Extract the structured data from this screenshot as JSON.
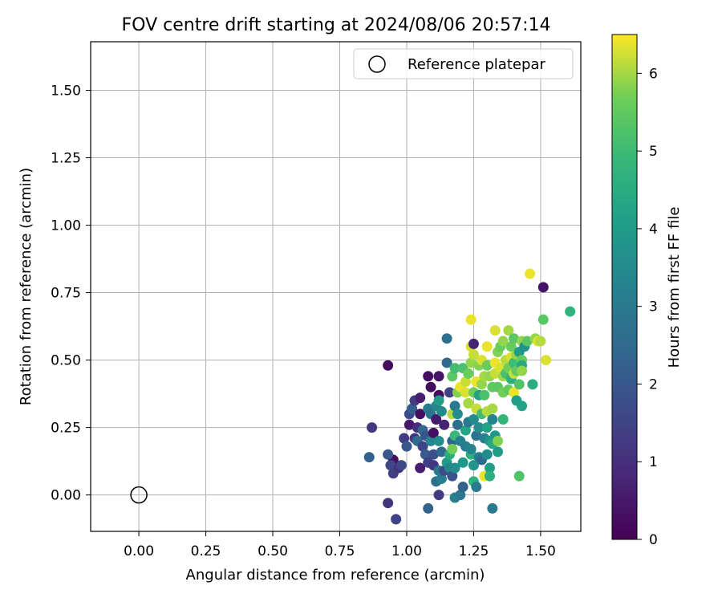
{
  "chart_data": {
    "type": "scatter",
    "title": "FOV centre drift starting at 2024/08/06 20:57:14",
    "xlabel": "Angular distance from reference (arcmin)",
    "ylabel": "Rotation from reference (arcmin)",
    "xlim": [
      -0.18,
      1.65
    ],
    "ylim": [
      -0.135,
      1.68
    ],
    "xticks": [
      "0.00",
      "0.25",
      "0.50",
      "0.75",
      "1.00",
      "1.25",
      "1.50"
    ],
    "yticks": [
      "0.00",
      "0.25",
      "0.50",
      "0.75",
      "1.00",
      "1.25",
      "1.50"
    ],
    "grid": true,
    "legend": {
      "label": "Reference platepar",
      "position": "upper right"
    },
    "colorbar": {
      "label": "Hours from first FF file",
      "colormap": "viridis",
      "range": [
        0,
        6.5
      ],
      "ticks": [
        "0",
        "1",
        "2",
        "3",
        "4",
        "5",
        "6"
      ]
    },
    "reference_point": {
      "x": 0.0,
      "y": 0.0
    },
    "points": [
      {
        "x": 0.93,
        "y": 0.48,
        "h": 0.2
      },
      {
        "x": 0.87,
        "y": 0.25,
        "h": 1.2
      },
      {
        "x": 0.93,
        "y": -0.03,
        "h": 1.1
      },
      {
        "x": 0.96,
        "y": -0.09,
        "h": 1.5
      },
      {
        "x": 0.86,
        "y": 0.14,
        "h": 2.2
      },
      {
        "x": 0.95,
        "y": 0.13,
        "h": 0.3
      },
      {
        "x": 0.93,
        "y": 0.15,
        "h": 2.0
      },
      {
        "x": 0.94,
        "y": 0.11,
        "h": 1.6
      },
      {
        "x": 0.95,
        "y": 0.08,
        "h": 1.4
      },
      {
        "x": 0.97,
        "y": 0.1,
        "h": 1.1
      },
      {
        "x": 0.98,
        "y": 0.11,
        "h": 1.6
      },
      {
        "x": 0.99,
        "y": 0.21,
        "h": 1.3
      },
      {
        "x": 1.0,
        "y": 0.18,
        "h": 2.0
      },
      {
        "x": 1.01,
        "y": 0.26,
        "h": 0.5
      },
      {
        "x": 1.01,
        "y": 0.3,
        "h": 1.7
      },
      {
        "x": 1.02,
        "y": 0.32,
        "h": 2.2
      },
      {
        "x": 1.03,
        "y": 0.21,
        "h": 1.2
      },
      {
        "x": 1.03,
        "y": 0.35,
        "h": 1.3
      },
      {
        "x": 1.04,
        "y": 0.25,
        "h": 0.9
      },
      {
        "x": 1.04,
        "y": 0.2,
        "h": 2.6
      },
      {
        "x": 1.05,
        "y": 0.36,
        "h": 0.6
      },
      {
        "x": 1.05,
        "y": 0.3,
        "h": 0.3
      },
      {
        "x": 1.05,
        "y": 0.1,
        "h": 0.6
      },
      {
        "x": 1.06,
        "y": 0.24,
        "h": 2.4
      },
      {
        "x": 1.06,
        "y": 0.18,
        "h": 1.5
      },
      {
        "x": 1.07,
        "y": 0.15,
        "h": 2.1
      },
      {
        "x": 1.07,
        "y": 0.22,
        "h": 1.9
      },
      {
        "x": 1.08,
        "y": 0.44,
        "h": 0.3
      },
      {
        "x": 1.08,
        "y": 0.32,
        "h": 3.0
      },
      {
        "x": 1.08,
        "y": 0.12,
        "h": 1.4
      },
      {
        "x": 1.08,
        "y": -0.05,
        "h": 2.3
      },
      {
        "x": 1.09,
        "y": 0.4,
        "h": 0.2
      },
      {
        "x": 1.09,
        "y": 0.3,
        "h": 2.8
      },
      {
        "x": 1.09,
        "y": 0.2,
        "h": 3.3
      },
      {
        "x": 1.1,
        "y": 0.23,
        "h": 0.3
      },
      {
        "x": 1.1,
        "y": 0.15,
        "h": 1.8
      },
      {
        "x": 1.1,
        "y": 0.11,
        "h": 1.2
      },
      {
        "x": 1.11,
        "y": 0.05,
        "h": 2.7
      },
      {
        "x": 1.11,
        "y": 0.28,
        "h": 0.5
      },
      {
        "x": 1.11,
        "y": 0.33,
        "h": 3.4
      },
      {
        "x": 1.12,
        "y": 0.37,
        "h": 0.3
      },
      {
        "x": 1.12,
        "y": 0.35,
        "h": 4.0
      },
      {
        "x": 1.12,
        "y": 0.2,
        "h": 3.6
      },
      {
        "x": 1.12,
        "y": 0.09,
        "h": 2.9
      },
      {
        "x": 1.12,
        "y": 0.0,
        "h": 1.3
      },
      {
        "x": 1.12,
        "y": 0.44,
        "h": 0.4
      },
      {
        "x": 1.13,
        "y": 0.31,
        "h": 3.5
      },
      {
        "x": 1.13,
        "y": 0.16,
        "h": 2.5
      },
      {
        "x": 1.13,
        "y": 0.06,
        "h": 3.1
      },
      {
        "x": 1.14,
        "y": 0.09,
        "h": 1.7
      },
      {
        "x": 1.14,
        "y": 0.26,
        "h": 0.7
      },
      {
        "x": 1.15,
        "y": 0.58,
        "h": 2.7
      },
      {
        "x": 1.15,
        "y": 0.49,
        "h": 2.5
      },
      {
        "x": 1.15,
        "y": 0.12,
        "h": 4.0
      },
      {
        "x": 1.16,
        "y": 0.15,
        "h": 4.5
      },
      {
        "x": 1.16,
        "y": 0.1,
        "h": 3.4
      },
      {
        "x": 1.16,
        "y": 0.38,
        "h": 1.5
      },
      {
        "x": 1.17,
        "y": 0.44,
        "h": 5.4
      },
      {
        "x": 1.17,
        "y": 0.2,
        "h": 2.3
      },
      {
        "x": 1.17,
        "y": 0.17,
        "h": 5.7
      },
      {
        "x": 1.17,
        "y": 0.07,
        "h": 1.9
      },
      {
        "x": 1.17,
        "y": 0.3,
        "h": 6.1
      },
      {
        "x": 1.18,
        "y": 0.47,
        "h": 5.1
      },
      {
        "x": 1.18,
        "y": 0.33,
        "h": 3.0
      },
      {
        "x": 1.18,
        "y": 0.22,
        "h": 4.9
      },
      {
        "x": 1.18,
        "y": 0.1,
        "h": 3.6
      },
      {
        "x": 1.18,
        "y": -0.01,
        "h": 3.2
      },
      {
        "x": 1.19,
        "y": 0.38,
        "h": 5.8
      },
      {
        "x": 1.19,
        "y": 0.3,
        "h": 3.6
      },
      {
        "x": 1.19,
        "y": 0.26,
        "h": 2.7
      },
      {
        "x": 1.2,
        "y": 0.4,
        "h": 6.4
      },
      {
        "x": 1.2,
        "y": 0.2,
        "h": 3.2
      },
      {
        "x": 1.2,
        "y": 0.0,
        "h": 2.9
      },
      {
        "x": 1.21,
        "y": 0.47,
        "h": 5.2
      },
      {
        "x": 1.21,
        "y": 0.03,
        "h": 2.3
      },
      {
        "x": 1.21,
        "y": 0.12,
        "h": 3.9
      },
      {
        "x": 1.22,
        "y": 0.42,
        "h": 6.2
      },
      {
        "x": 1.22,
        "y": 0.38,
        "h": 6.3
      },
      {
        "x": 1.22,
        "y": 0.24,
        "h": 4.3
      },
      {
        "x": 1.22,
        "y": 0.18,
        "h": 3.1
      },
      {
        "x": 1.23,
        "y": 0.45,
        "h": 5.6
      },
      {
        "x": 1.23,
        "y": 0.34,
        "h": 6.0
      },
      {
        "x": 1.23,
        "y": 0.27,
        "h": 2.9
      },
      {
        "x": 1.24,
        "y": 0.65,
        "h": 6.4
      },
      {
        "x": 1.24,
        "y": 0.55,
        "h": 6.3
      },
      {
        "x": 1.24,
        "y": 0.49,
        "h": 5.9
      },
      {
        "x": 1.24,
        "y": 0.15,
        "h": 4.6
      },
      {
        "x": 1.24,
        "y": 0.17,
        "h": 3.3
      },
      {
        "x": 1.25,
        "y": 0.56,
        "h": 0.7
      },
      {
        "x": 1.25,
        "y": 0.52,
        "h": 6.2
      },
      {
        "x": 1.25,
        "y": 0.38,
        "h": 5.7
      },
      {
        "x": 1.25,
        "y": 0.28,
        "h": 3.5
      },
      {
        "x": 1.25,
        "y": 0.11,
        "h": 3.8
      },
      {
        "x": 1.25,
        "y": 0.05,
        "h": 4.7
      },
      {
        "x": 1.26,
        "y": 0.42,
        "h": 6.4
      },
      {
        "x": 1.26,
        "y": 0.32,
        "h": 6.2
      },
      {
        "x": 1.26,
        "y": 0.22,
        "h": 2.8
      },
      {
        "x": 1.26,
        "y": 0.03,
        "h": 3.0
      },
      {
        "x": 1.27,
        "y": 0.48,
        "h": 5.8
      },
      {
        "x": 1.27,
        "y": 0.37,
        "h": 4.2
      },
      {
        "x": 1.27,
        "y": 0.25,
        "h": 3.6
      },
      {
        "x": 1.27,
        "y": 0.14,
        "h": 3.1
      },
      {
        "x": 1.28,
        "y": 0.5,
        "h": 6.3
      },
      {
        "x": 1.28,
        "y": 0.41,
        "h": 5.9
      },
      {
        "x": 1.28,
        "y": 0.3,
        "h": 5.1
      },
      {
        "x": 1.28,
        "y": 0.13,
        "h": 2.5
      },
      {
        "x": 1.29,
        "y": 0.44,
        "h": 6.0
      },
      {
        "x": 1.29,
        "y": 0.37,
        "h": 5.2
      },
      {
        "x": 1.29,
        "y": 0.21,
        "h": 3.2
      },
      {
        "x": 1.29,
        "y": 0.07,
        "h": 6.4
      },
      {
        "x": 1.3,
        "y": 0.55,
        "h": 6.4
      },
      {
        "x": 1.3,
        "y": 0.48,
        "h": 5.6
      },
      {
        "x": 1.3,
        "y": 0.31,
        "h": 6.1
      },
      {
        "x": 1.3,
        "y": 0.25,
        "h": 4.2
      },
      {
        "x": 1.3,
        "y": 0.15,
        "h": 3.5
      },
      {
        "x": 1.31,
        "y": 0.44,
        "h": 5.9
      },
      {
        "x": 1.31,
        "y": 0.2,
        "h": 3.8
      },
      {
        "x": 1.31,
        "y": 0.1,
        "h": 4.1
      },
      {
        "x": 1.31,
        "y": 0.07,
        "h": 4.6
      },
      {
        "x": 1.32,
        "y": 0.4,
        "h": 5.5
      },
      {
        "x": 1.32,
        "y": 0.32,
        "h": 6.0
      },
      {
        "x": 1.32,
        "y": 0.28,
        "h": 3.3
      },
      {
        "x": 1.32,
        "y": 0.19,
        "h": 4.4
      },
      {
        "x": 1.32,
        "y": -0.05,
        "h": 3.0
      },
      {
        "x": 1.33,
        "y": 0.61,
        "h": 6.3
      },
      {
        "x": 1.33,
        "y": 0.49,
        "h": 6.4
      },
      {
        "x": 1.33,
        "y": 0.45,
        "h": 6.2
      },
      {
        "x": 1.33,
        "y": 0.22,
        "h": 3.9
      },
      {
        "x": 1.34,
        "y": 0.53,
        "h": 5.8
      },
      {
        "x": 1.34,
        "y": 0.4,
        "h": 5.4
      },
      {
        "x": 1.34,
        "y": 0.2,
        "h": 5.8
      },
      {
        "x": 1.34,
        "y": 0.16,
        "h": 4.0
      },
      {
        "x": 1.35,
        "y": 0.55,
        "h": 5.6
      },
      {
        "x": 1.35,
        "y": 0.47,
        "h": 6.3
      },
      {
        "x": 1.36,
        "y": 0.57,
        "h": 5.9
      },
      {
        "x": 1.36,
        "y": 0.44,
        "h": 6.0
      },
      {
        "x": 1.36,
        "y": 0.38,
        "h": 5.7
      },
      {
        "x": 1.36,
        "y": 0.28,
        "h": 4.8
      },
      {
        "x": 1.37,
        "y": 0.5,
        "h": 6.1
      },
      {
        "x": 1.37,
        "y": 0.45,
        "h": 5.2
      },
      {
        "x": 1.38,
        "y": 0.61,
        "h": 6.0
      },
      {
        "x": 1.38,
        "y": 0.47,
        "h": 5.7
      },
      {
        "x": 1.38,
        "y": 0.39,
        "h": 5.5
      },
      {
        "x": 1.39,
        "y": 0.55,
        "h": 5.6
      },
      {
        "x": 1.39,
        "y": 0.51,
        "h": 6.3
      },
      {
        "x": 1.39,
        "y": 0.43,
        "h": 4.6
      },
      {
        "x": 1.4,
        "y": 0.58,
        "h": 5.4
      },
      {
        "x": 1.4,
        "y": 0.49,
        "h": 5.0
      },
      {
        "x": 1.4,
        "y": 0.45,
        "h": 6.2
      },
      {
        "x": 1.4,
        "y": 0.38,
        "h": 6.4
      },
      {
        "x": 1.41,
        "y": 0.52,
        "h": 5.9
      },
      {
        "x": 1.41,
        "y": 0.46,
        "h": 5.5
      },
      {
        "x": 1.41,
        "y": 0.35,
        "h": 4.1
      },
      {
        "x": 1.42,
        "y": 0.53,
        "h": 4.0
      },
      {
        "x": 1.42,
        "y": 0.41,
        "h": 5.3
      },
      {
        "x": 1.42,
        "y": 0.07,
        "h": 5.3
      },
      {
        "x": 1.43,
        "y": 0.57,
        "h": 5.9
      },
      {
        "x": 1.43,
        "y": 0.5,
        "h": 5.6
      },
      {
        "x": 1.43,
        "y": 0.48,
        "h": 4.4
      },
      {
        "x": 1.43,
        "y": 0.46,
        "h": 5.9
      },
      {
        "x": 1.43,
        "y": 0.33,
        "h": 4.2
      },
      {
        "x": 1.44,
        "y": 0.55,
        "h": 3.7
      },
      {
        "x": 1.45,
        "y": 0.57,
        "h": 5.4
      },
      {
        "x": 1.46,
        "y": 0.82,
        "h": 6.4
      },
      {
        "x": 1.47,
        "y": 0.41,
        "h": 4.5
      },
      {
        "x": 1.48,
        "y": 0.58,
        "h": 5.9
      },
      {
        "x": 1.49,
        "y": 0.57,
        "h": 6.3
      },
      {
        "x": 1.5,
        "y": 0.57,
        "h": 6.1
      },
      {
        "x": 1.51,
        "y": 0.65,
        "h": 5.4
      },
      {
        "x": 1.51,
        "y": 0.77,
        "h": 0.4
      },
      {
        "x": 1.52,
        "y": 0.5,
        "h": 6.3
      },
      {
        "x": 1.61,
        "y": 0.68,
        "h": 4.7
      }
    ]
  }
}
